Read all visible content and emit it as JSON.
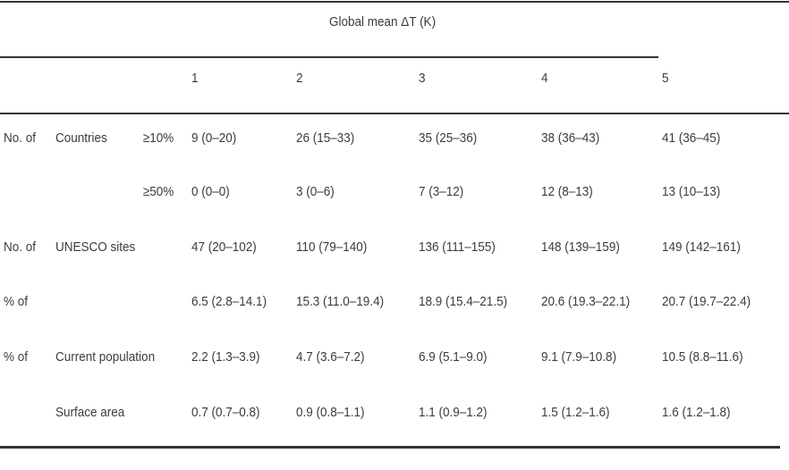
{
  "table": {
    "spanning_header": "Global mean ΔT (K)",
    "columns": [
      "1",
      "2",
      "3",
      "4",
      "5"
    ],
    "rows": [
      {
        "group": "No. of",
        "label": "Countries",
        "sub": "≥10%",
        "values": [
          "9 (0–20)",
          "26 (15–33)",
          "35 (25–36)",
          "38 (36–43)",
          "41 (36–45)"
        ]
      },
      {
        "group": "",
        "label": "",
        "sub": "≥50%",
        "values": [
          "0 (0–0)",
          "3 (0–6)",
          "7 (3–12)",
          "12 (8–13)",
          "13 (10–13)"
        ]
      },
      {
        "group": "No. of",
        "label": "UNESCO sites",
        "sub": "",
        "values": [
          "47 (20–102)",
          "110 (79–140)",
          "136 (111–155)",
          "148 (139–159)",
          "149 (142–161)"
        ]
      },
      {
        "group": "% of",
        "label": "",
        "sub": "",
        "values": [
          "6.5 (2.8–14.1)",
          "15.3 (11.0–19.4)",
          "18.9 (15.4–21.5)",
          "20.6 (19.3–22.1)",
          "20.7 (19.7–22.4)"
        ]
      },
      {
        "group": "% of",
        "label": "Current population",
        "sub": "",
        "values": [
          "2.2 (1.3–3.9)",
          "4.7 (3.6–7.2)",
          "6.9 (5.1–9.0)",
          "9.1 (7.9–10.8)",
          "10.5 (8.8–11.6)"
        ]
      },
      {
        "group": "",
        "label": "Surface area",
        "sub": "",
        "values": [
          "0.7 (0.7–0.8)",
          "0.9 (0.8–1.1)",
          "1.1 (0.9–1.2)",
          "1.5 (1.2–1.6)",
          "1.6 (1.2–1.8)"
        ]
      }
    ]
  }
}
